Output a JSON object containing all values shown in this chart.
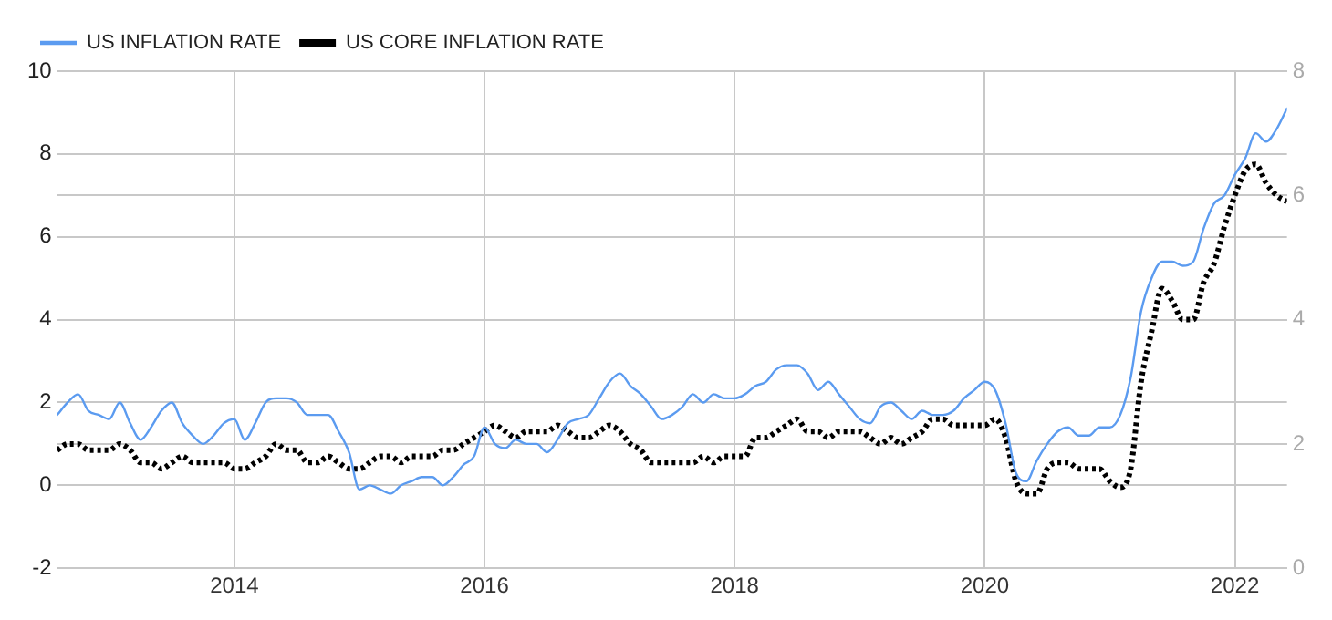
{
  "chart_data": {
    "type": "line",
    "x": [
      "2012-08",
      "2012-09",
      "2012-10",
      "2012-11",
      "2012-12",
      "2013-01",
      "2013-02",
      "2013-03",
      "2013-04",
      "2013-05",
      "2013-06",
      "2013-07",
      "2013-08",
      "2013-09",
      "2013-10",
      "2013-11",
      "2013-12",
      "2014-01",
      "2014-02",
      "2014-03",
      "2014-04",
      "2014-05",
      "2014-06",
      "2014-07",
      "2014-08",
      "2014-09",
      "2014-10",
      "2014-11",
      "2014-12",
      "2015-01",
      "2015-02",
      "2015-03",
      "2015-04",
      "2015-05",
      "2015-06",
      "2015-07",
      "2015-08",
      "2015-09",
      "2015-10",
      "2015-11",
      "2015-12",
      "2016-01",
      "2016-02",
      "2016-03",
      "2016-04",
      "2016-05",
      "2016-06",
      "2016-07",
      "2016-08",
      "2016-09",
      "2016-10",
      "2016-11",
      "2016-12",
      "2017-01",
      "2017-02",
      "2017-03",
      "2017-04",
      "2017-05",
      "2017-06",
      "2017-07",
      "2017-08",
      "2017-09",
      "2017-10",
      "2017-11",
      "2017-12",
      "2018-01",
      "2018-02",
      "2018-03",
      "2018-04",
      "2018-05",
      "2018-06",
      "2018-07",
      "2018-08",
      "2018-09",
      "2018-10",
      "2018-11",
      "2018-12",
      "2019-01",
      "2019-02",
      "2019-03",
      "2019-04",
      "2019-05",
      "2019-06",
      "2019-07",
      "2019-08",
      "2019-09",
      "2019-10",
      "2019-11",
      "2019-12",
      "2020-01",
      "2020-02",
      "2020-03",
      "2020-04",
      "2020-05",
      "2020-06",
      "2020-07",
      "2020-08",
      "2020-09",
      "2020-10",
      "2020-11",
      "2020-12",
      "2021-01",
      "2021-02",
      "2021-03",
      "2021-04",
      "2021-05",
      "2021-06",
      "2021-07",
      "2021-08",
      "2021-09",
      "2021-10",
      "2021-11",
      "2021-12",
      "2022-01",
      "2022-02",
      "2022-03",
      "2022-04",
      "2022-05",
      "2022-06"
    ],
    "series": [
      {
        "name": "US INFLATION RATE",
        "color": "#5b9bf0",
        "line_style": "solid",
        "values": [
          1.7,
          2.0,
          2.2,
          1.8,
          1.7,
          1.6,
          2.0,
          1.5,
          1.1,
          1.4,
          1.8,
          2.0,
          1.5,
          1.2,
          1.0,
          1.2,
          1.5,
          1.6,
          1.1,
          1.5,
          2.0,
          2.1,
          2.1,
          2.0,
          1.7,
          1.7,
          1.7,
          1.3,
          0.8,
          -0.1,
          0.0,
          -0.1,
          -0.2,
          0.0,
          0.1,
          0.2,
          0.2,
          0.0,
          0.2,
          0.5,
          0.7,
          1.4,
          1.0,
          0.9,
          1.1,
          1.0,
          1.0,
          0.8,
          1.1,
          1.5,
          1.6,
          1.7,
          2.1,
          2.5,
          2.7,
          2.4,
          2.2,
          1.9,
          1.6,
          1.7,
          1.9,
          2.2,
          2.0,
          2.2,
          2.1,
          2.1,
          2.2,
          2.4,
          2.5,
          2.8,
          2.9,
          2.9,
          2.7,
          2.3,
          2.5,
          2.2,
          1.9,
          1.6,
          1.5,
          1.9,
          2.0,
          1.8,
          1.6,
          1.8,
          1.7,
          1.7,
          1.8,
          2.1,
          2.3,
          2.5,
          2.3,
          1.5,
          0.3,
          0.1,
          0.6,
          1.0,
          1.3,
          1.4,
          1.2,
          1.2,
          1.4,
          1.4,
          1.7,
          2.6,
          4.2,
          5.0,
          5.4,
          5.4,
          5.3,
          5.4,
          6.2,
          6.8,
          7.0,
          7.5,
          7.9,
          8.5,
          8.3,
          8.6,
          9.1
        ]
      },
      {
        "name": "US CORE INFLATION RATE",
        "color": "#000000",
        "line_style": "dotted",
        "axis": "y2",
        "values": [
          1.9,
          2.0,
          2.0,
          1.9,
          1.9,
          1.9,
          2.0,
          1.9,
          1.7,
          1.7,
          1.6,
          1.7,
          1.8,
          1.7,
          1.7,
          1.7,
          1.7,
          1.6,
          1.6,
          1.7,
          1.8,
          2.0,
          1.9,
          1.9,
          1.7,
          1.7,
          1.8,
          1.7,
          1.6,
          1.6,
          1.7,
          1.8,
          1.8,
          1.7,
          1.8,
          1.8,
          1.8,
          1.9,
          1.9,
          2.0,
          2.1,
          2.2,
          2.3,
          2.2,
          2.1,
          2.2,
          2.2,
          2.2,
          2.3,
          2.2,
          2.1,
          2.1,
          2.2,
          2.3,
          2.2,
          2.0,
          1.9,
          1.7,
          1.7,
          1.7,
          1.7,
          1.7,
          1.8,
          1.7,
          1.8,
          1.8,
          1.8,
          2.1,
          2.1,
          2.2,
          2.3,
          2.4,
          2.2,
          2.2,
          2.1,
          2.2,
          2.2,
          2.2,
          2.1,
          2.0,
          2.1,
          2.0,
          2.1,
          2.2,
          2.4,
          2.4,
          2.3,
          2.3,
          2.3,
          2.3,
          2.4,
          2.1,
          1.4,
          1.2,
          1.2,
          1.6,
          1.7,
          1.7,
          1.6,
          1.6,
          1.6,
          1.4,
          1.3,
          1.6,
          3.0,
          3.8,
          4.5,
          4.3,
          4.0,
          4.0,
          4.6,
          4.9,
          5.5,
          6.0,
          6.4,
          6.5,
          6.2,
          6.0,
          5.9
        ]
      }
    ],
    "xlim": [
      "2012-08",
      "2022-06"
    ],
    "xticks": [
      "2014",
      "2016",
      "2018",
      "2020",
      "2022"
    ],
    "ylim": [
      -2,
      10
    ],
    "yticks": [
      -2,
      0,
      2,
      4,
      6,
      8,
      10
    ],
    "y2lim": [
      0,
      8
    ],
    "y2ticks": [
      0,
      2,
      4,
      6,
      8
    ],
    "grid": true,
    "legend": "top left",
    "marker": "none"
  }
}
